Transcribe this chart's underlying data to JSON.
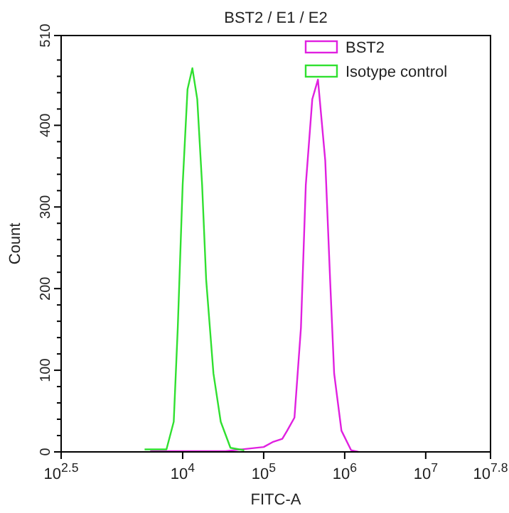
{
  "chart_data": {
    "type": "line",
    "title": "BST2 / E1 / E2",
    "xlabel": "FITC-A",
    "ylabel": "Count",
    "log": "x",
    "xlim": [
      316.23,
      63095734
    ],
    "xticks": [
      {
        "value": 316.23,
        "label": "10$^{2.5}$"
      },
      {
        "value": 10000,
        "label": "10$^{4}$"
      },
      {
        "value": 100000,
        "label": "10$^{5}$"
      },
      {
        "value": 1000000,
        "label": "10$^{6}$"
      },
      {
        "value": 10000000,
        "label": "10$^{7}$"
      },
      {
        "value": 63095734,
        "label": "10$^{7.8}$"
      }
    ],
    "ylim": [
      0,
      510
    ],
    "yticks": [
      0,
      {
        "value": 20,
        "label": null
      },
      {
        "value": 40,
        "label": null
      },
      {
        "value": 60,
        "label": null
      },
      {
        "value": 80,
        "label": null
      },
      100,
      {
        "value": 120,
        "label": null
      },
      {
        "value": 140,
        "label": null
      },
      {
        "value": 160,
        "label": null
      },
      {
        "value": 180,
        "label": null
      },
      200,
      {
        "value": 220,
        "label": null
      },
      {
        "value": 240,
        "label": null
      },
      {
        "value": 260,
        "label": null
      },
      {
        "value": 280,
        "label": null
      },
      300,
      {
        "value": 320,
        "label": null
      },
      {
        "value": 340,
        "label": null
      },
      {
        "value": 360,
        "label": null
      },
      {
        "value": 380,
        "label": null
      },
      400,
      {
        "value": 420,
        "label": null
      },
      {
        "value": 440,
        "label": null
      },
      {
        "value": 460,
        "label": null
      },
      {
        "value": 480,
        "label": null
      },
      510
    ],
    "grid": false,
    "legend": "top right",
    "marker": "none",
    "line_style": "solid",
    "series": [
      {
        "name": "BST2",
        "color": "#e020e0",
        "x": [
          3980,
          10000,
          33880,
          100000,
          128800,
          169800,
          195000,
          239900,
          288400,
          331100,
          398100,
          467700,
          575400,
          660700,
          741300,
          912000,
          1202000,
          1479000
        ],
        "values": [
          1,
          1,
          1,
          6,
          12,
          16,
          26,
          42,
          152,
          327,
          432,
          456,
          357,
          211,
          96,
          26,
          2,
          0
        ]
      },
      {
        "name": "Isotype control",
        "color": "#30e030",
        "x": [
          3390,
          6310,
          7760,
          8710,
          10000,
          11480,
          13180,
          15140,
          17380,
          19500,
          23990,
          29510,
          38900,
          57540
        ],
        "values": [
          3,
          3,
          37,
          153,
          327,
          444,
          470,
          432,
          327,
          211,
          96,
          37,
          5,
          2
        ]
      }
    ]
  }
}
